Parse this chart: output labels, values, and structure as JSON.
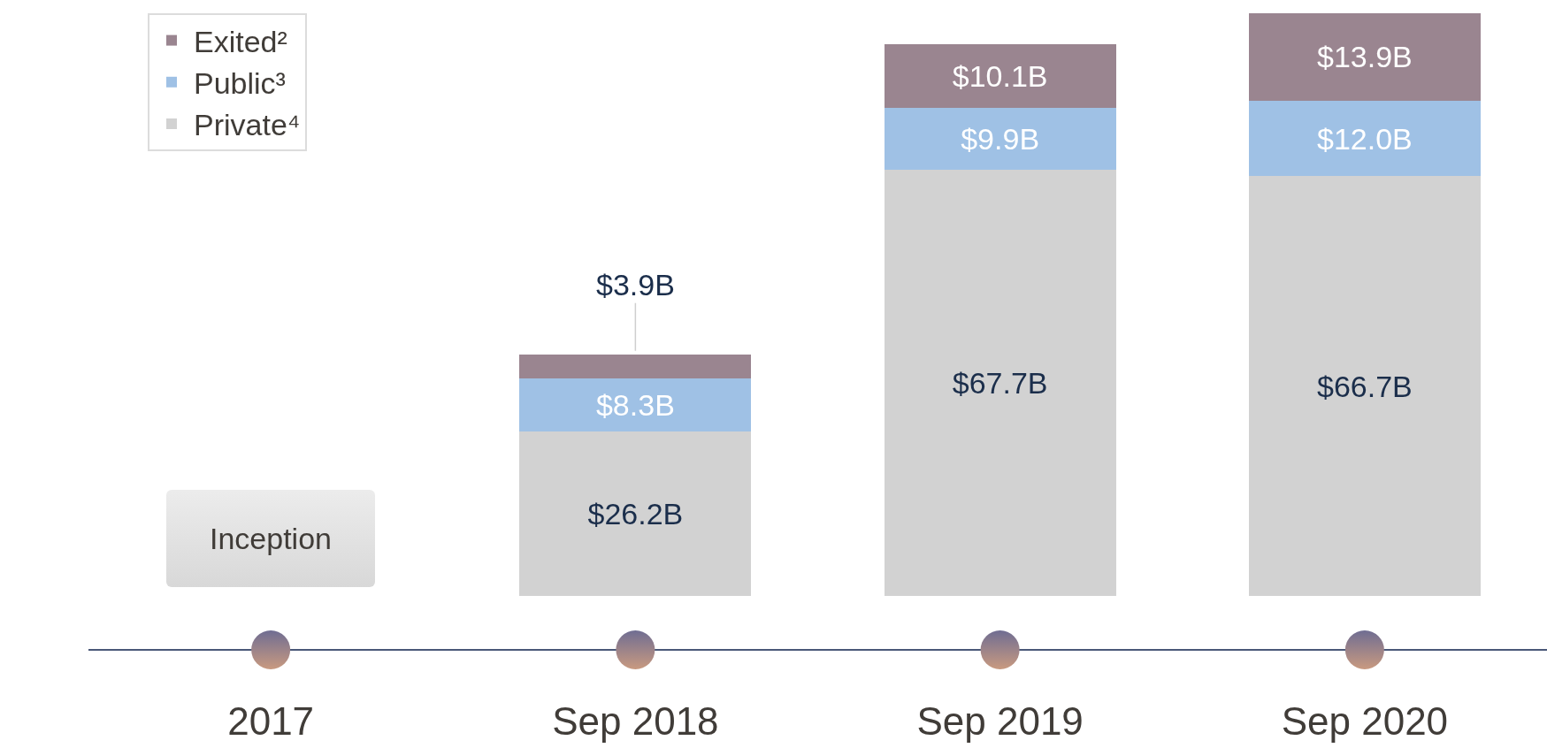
{
  "chart_data": {
    "type": "bar",
    "stacked": true,
    "categories": [
      "2017",
      "Sep 2018",
      "Sep 2019",
      "Sep 2020"
    ],
    "series": [
      {
        "name": "Private⁴",
        "color": "#d2d2d2",
        "values": [
          null,
          26.2,
          67.7,
          66.7
        ],
        "value_labels": [
          null,
          "$26.2B",
          "$67.7B",
          "$66.7B"
        ]
      },
      {
        "name": "Public³",
        "color": "#9fc1e5",
        "values": [
          null,
          8.3,
          9.9,
          12.0
        ],
        "value_labels": [
          null,
          "$8.3B",
          "$9.9B",
          "$12.0B"
        ]
      },
      {
        "name": "Exited²",
        "color": "#9a8590",
        "values": [
          null,
          3.9,
          10.1,
          13.9
        ],
        "value_labels": [
          null,
          "$3.9B",
          "$10.1B",
          "$13.9B"
        ]
      }
    ],
    "legend": "top left",
    "annotations": [
      "Inception"
    ]
  }
}
